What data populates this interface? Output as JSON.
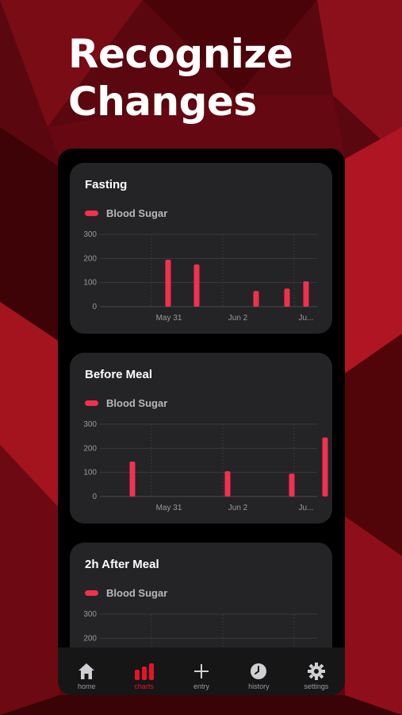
{
  "headline": {
    "line1": "Recognize",
    "line2": "Changes"
  },
  "colors": {
    "accent": "#f2304f",
    "tab_active": "#e3142c",
    "card_bg": "#242426",
    "phone_bg": "#000000",
    "background": "#5a0710"
  },
  "charts": [
    {
      "title": "Fasting",
      "legend": "Blood Sugar",
      "yticks": [
        "300",
        "200",
        "100",
        "0"
      ],
      "xticks": [
        "May 31",
        "Jun 2",
        "Ju..."
      ]
    },
    {
      "title": "Before Meal",
      "legend": "Blood Sugar",
      "yticks": [
        "300",
        "200",
        "100",
        "0"
      ],
      "xticks": [
        "May 31",
        "Jun 2",
        "Ju..."
      ]
    },
    {
      "title": "2h After Meal",
      "legend": "Blood Sugar",
      "yticks": [
        "300",
        "200"
      ],
      "xticks": []
    }
  ],
  "chart_data": [
    {
      "type": "bar",
      "title": "Fasting",
      "series": [
        {
          "name": "Blood Sugar",
          "values": [
            195,
            175,
            65,
            75,
            105
          ]
        }
      ],
      "x": [
        0.35,
        0.95,
        2.2,
        2.85,
        3.25
      ],
      "xticks": [
        "May 31",
        "Jun 2",
        "Ju..."
      ],
      "ylim": [
        0,
        300
      ],
      "grid": true,
      "legend_position": "top-left"
    },
    {
      "type": "bar",
      "title": "Before Meal",
      "series": [
        {
          "name": "Blood Sugar",
          "values": [
            145,
            105,
            95,
            245
          ]
        }
      ],
      "x": [
        -0.4,
        1.6,
        2.95,
        3.65
      ],
      "xticks": [
        "May 31",
        "Jun 2",
        "Ju..."
      ],
      "ylim": [
        0,
        300
      ],
      "grid": true,
      "legend_position": "top-left"
    },
    {
      "type": "bar",
      "title": "2h After Meal",
      "series": [
        {
          "name": "Blood Sugar",
          "values": []
        }
      ],
      "xticks": [],
      "ylim": [
        0,
        300
      ],
      "grid": true,
      "legend_position": "top-left"
    }
  ],
  "tabbar": {
    "items": [
      {
        "label": "home",
        "icon": "house-icon",
        "active": false
      },
      {
        "label": "charts",
        "icon": "bar-chart-icon",
        "active": true
      },
      {
        "label": "entry",
        "icon": "plus-icon",
        "active": false
      },
      {
        "label": "history",
        "icon": "clock-icon",
        "active": false
      },
      {
        "label": "settings",
        "icon": "gear-icon",
        "active": false
      }
    ]
  }
}
